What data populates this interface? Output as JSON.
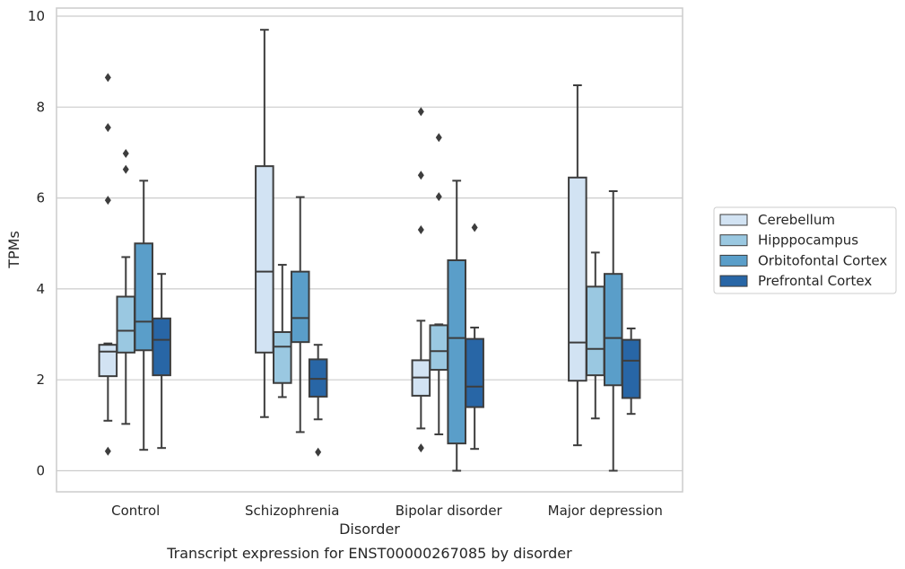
{
  "caption": "Transcript expression for ENST00000267085 by disorder",
  "chart_data": {
    "type": "box",
    "xlabel": "Disorder",
    "ylabel": "TPMs",
    "ylim": [
      -0.45,
      10.2
    ],
    "yticks": [
      "0",
      "2",
      "4",
      "6",
      "8",
      "10"
    ],
    "grid": true,
    "legend_position": "right",
    "categories": [
      "Control",
      "Schizophrenia",
      "Bipolar disorder",
      "Major depression"
    ],
    "series": [
      {
        "name": "Cerebellum",
        "color": "#d2e3f3",
        "boxes": [
          {
            "whislo": 1.1,
            "q1": 2.08,
            "med": 2.62,
            "q3": 2.77,
            "whishi": 2.8,
            "fliers": [
              0.43,
              5.95,
              7.55,
              8.65
            ]
          },
          {
            "whislo": 1.18,
            "q1": 2.6,
            "med": 4.38,
            "q3": 6.7,
            "whishi": 9.7,
            "fliers": []
          },
          {
            "whislo": 0.93,
            "q1": 1.65,
            "med": 2.05,
            "q3": 2.43,
            "whishi": 3.3,
            "fliers": [
              0.5,
              5.3,
              6.5,
              7.9
            ]
          },
          {
            "whislo": 0.56,
            "q1": 1.98,
            "med": 2.82,
            "q3": 6.45,
            "whishi": 8.48,
            "fliers": []
          }
        ]
      },
      {
        "name": "Hipppocampus",
        "color": "#9ac8e1",
        "boxes": [
          {
            "whislo": 1.03,
            "q1": 2.6,
            "med": 3.08,
            "q3": 3.83,
            "whishi": 4.7,
            "fliers": [
              6.63,
              6.98
            ]
          },
          {
            "whislo": 1.62,
            "q1": 1.93,
            "med": 2.73,
            "q3": 3.05,
            "whishi": 4.53,
            "fliers": []
          },
          {
            "whislo": 0.8,
            "q1": 2.22,
            "med": 2.63,
            "q3": 3.2,
            "whishi": 3.22,
            "fliers": [
              6.03,
              7.33
            ]
          },
          {
            "whislo": 1.15,
            "q1": 2.1,
            "med": 2.68,
            "q3": 4.05,
            "whishi": 4.8,
            "fliers": []
          }
        ]
      },
      {
        "name": "Orbitofontal Cortex",
        "color": "#5a9ec9",
        "boxes": [
          {
            "whislo": 0.46,
            "q1": 2.65,
            "med": 3.28,
            "q3": 5.0,
            "whishi": 6.38,
            "fliers": []
          },
          {
            "whislo": 0.85,
            "q1": 2.83,
            "med": 3.36,
            "q3": 4.38,
            "whishi": 6.02,
            "fliers": []
          },
          {
            "whislo": 0.0,
            "q1": 0.6,
            "med": 2.92,
            "q3": 4.63,
            "whishi": 6.38,
            "fliers": []
          },
          {
            "whislo": 0.0,
            "q1": 1.88,
            "med": 2.92,
            "q3": 4.33,
            "whishi": 6.15,
            "fliers": []
          }
        ]
      },
      {
        "name": "Prefrontal Cortex",
        "color": "#2866a6",
        "boxes": [
          {
            "whislo": 0.5,
            "q1": 2.1,
            "med": 2.88,
            "q3": 3.35,
            "whishi": 4.33,
            "fliers": []
          },
          {
            "whislo": 1.13,
            "q1": 1.63,
            "med": 2.02,
            "q3": 2.45,
            "whishi": 2.77,
            "fliers": [
              0.41
            ]
          },
          {
            "whislo": 0.48,
            "q1": 1.4,
            "med": 1.85,
            "q3": 2.9,
            "whishi": 3.15,
            "fliers": [
              5.35
            ]
          },
          {
            "whislo": 1.25,
            "q1": 1.6,
            "med": 2.42,
            "q3": 2.88,
            "whishi": 3.13,
            "fliers": []
          }
        ]
      }
    ]
  }
}
